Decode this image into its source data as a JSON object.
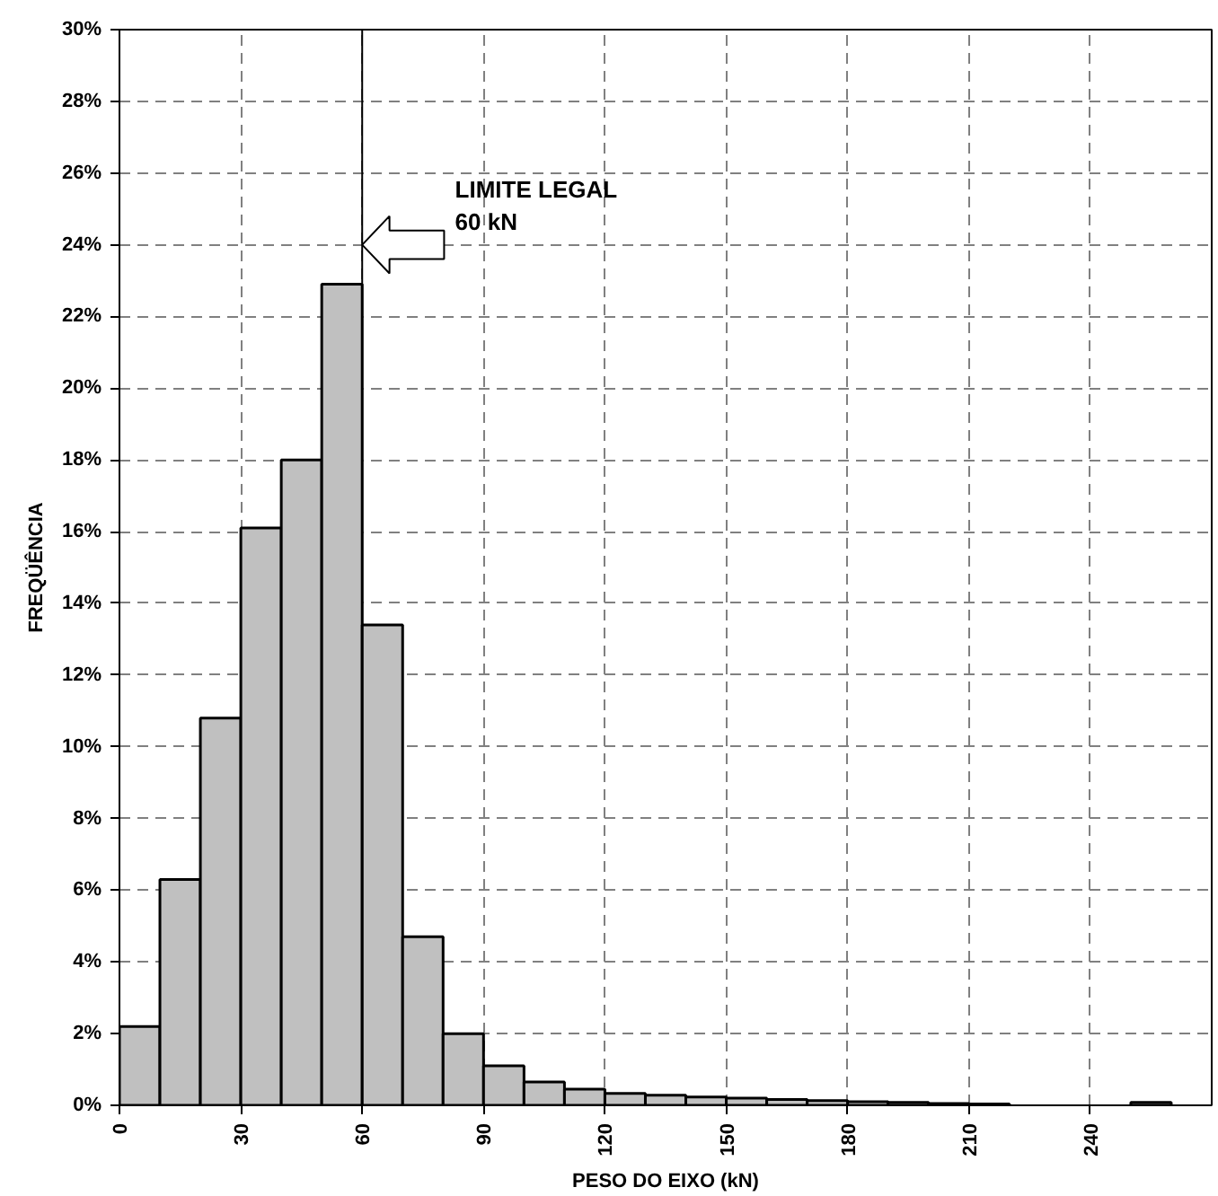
{
  "chart_data": {
    "type": "histogram",
    "xlabel": "PESO DO EIXO (kN)",
    "ylabel": "FREQÜÊNCIA",
    "bins": [
      0,
      10,
      20,
      30,
      40,
      50,
      60,
      70,
      80,
      90,
      100,
      110,
      120,
      130,
      140,
      150,
      160,
      170,
      180,
      190,
      200,
      210,
      220,
      230,
      240,
      250,
      260
    ],
    "values": [
      2.2,
      6.3,
      10.8,
      16.1,
      18.0,
      22.9,
      13.4,
      4.7,
      2.0,
      1.1,
      0.65,
      0.45,
      0.33,
      0.28,
      0.23,
      0.2,
      0.16,
      0.13,
      0.1,
      0.08,
      0.05,
      0.04,
      null,
      null,
      null,
      0.08
    ],
    "color": "#c0c0c0",
    "xlim": [
      0,
      270
    ],
    "ylim": [
      0,
      30
    ],
    "xticks": [
      0,
      30,
      60,
      90,
      120,
      150,
      180,
      210,
      240
    ],
    "yticks": [
      {
        "value": 0,
        "label": "0%"
      },
      {
        "value": 2,
        "label": "2%"
      },
      {
        "value": 4,
        "label": "4%"
      },
      {
        "value": 6,
        "label": "6%"
      },
      {
        "value": 8,
        "label": "8%"
      },
      {
        "value": 10,
        "label": "10%"
      },
      {
        "value": 12,
        "label": "12%"
      },
      {
        "value": 14,
        "label": "14%"
      },
      {
        "value": 16,
        "label": "16%"
      },
      {
        "value": 18,
        "label": "18%"
      },
      {
        "value": 20,
        "label": "20%"
      },
      {
        "value": 22,
        "label": "22%"
      },
      {
        "value": 24,
        "label": "24%"
      },
      {
        "value": 26,
        "label": "26%"
      },
      {
        "value": 28,
        "label": "28%"
      },
      {
        "value": 30,
        "label": "30%"
      }
    ],
    "ref_lines": [
      {
        "axis": "x",
        "value": 60,
        "label": "LIMITE LEGAL\n60 kN",
        "color": "#000000",
        "line_style": "solid"
      }
    ],
    "grid": true
  }
}
